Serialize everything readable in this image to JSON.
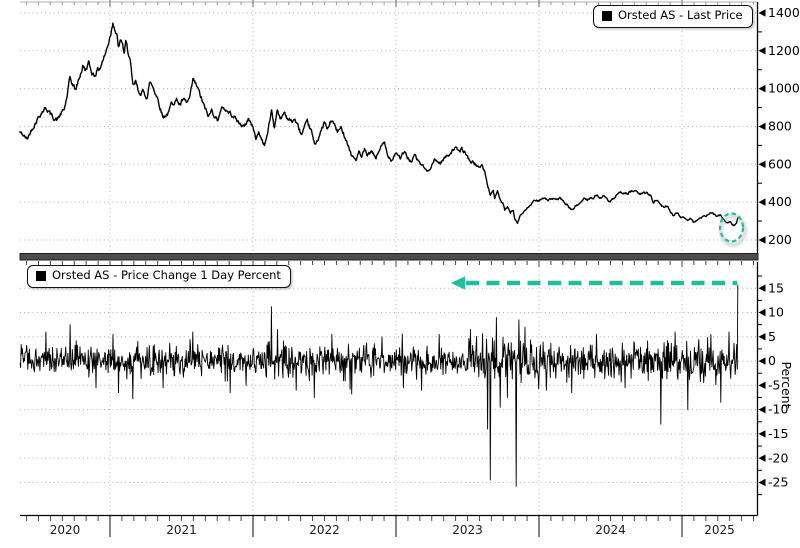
{
  "accent_color": "#1dbf9f",
  "line_color": "#000000",
  "grid_color": "#aeaeae",
  "top_panel": {
    "legend": "Orsted AS - Last Price"
  },
  "bottom_panel": {
    "legend": "Orsted AS - Price Change 1 Day Percent",
    "ylabel": "Percent"
  },
  "x_axis": {
    "year_labels": [
      "2020",
      "2021",
      "2022",
      "2023",
      "2024",
      "2025"
    ]
  },
  "chart_data": [
    {
      "type": "line",
      "title": "Orsted AS - Last Price",
      "ylabel": "",
      "yticks": [
        200,
        400,
        600,
        800,
        1000,
        1200,
        1400
      ],
      "ylim": [
        131,
        1458
      ],
      "xlim": [
        2020.37,
        2025.52
      ],
      "legend_position": "top-right",
      "grid": "dotted",
      "annotation": "dashed teal ellipse circling the final data points near price 290",
      "points": [
        [
          2020.37,
          770
        ],
        [
          2020.4,
          748
        ],
        [
          2020.42,
          733
        ],
        [
          2020.45,
          780
        ],
        [
          2020.47,
          807
        ],
        [
          2020.5,
          850
        ],
        [
          2020.52,
          872
        ],
        [
          2020.55,
          900
        ],
        [
          2020.57,
          880
        ],
        [
          2020.59,
          860
        ],
        [
          2020.61,
          842
        ],
        [
          2020.63,
          835
        ],
        [
          2020.66,
          870
        ],
        [
          2020.68,
          890
        ],
        [
          2020.7,
          960
        ],
        [
          2020.72,
          1056
        ],
        [
          2020.74,
          1020
        ],
        [
          2020.76,
          993
        ],
        [
          2020.79,
          1070
        ],
        [
          2020.81,
          1115
        ],
        [
          2020.83,
          1100
        ],
        [
          2020.85,
          1136
        ],
        [
          2020.87,
          1090
        ],
        [
          2020.89,
          1072
        ],
        [
          2020.91,
          1095
        ],
        [
          2020.93,
          1110
        ],
        [
          2020.95,
          1150
        ],
        [
          2020.97,
          1188
        ],
        [
          2020.99,
          1247
        ],
        [
          2021.01,
          1310
        ],
        [
          2021.02,
          1360
        ],
        [
          2021.04,
          1300
        ],
        [
          2021.05,
          1268
        ],
        [
          2021.06,
          1215
        ],
        [
          2021.08,
          1257
        ],
        [
          2021.1,
          1188
        ],
        [
          2021.11,
          1241
        ],
        [
          2021.13,
          1190
        ],
        [
          2021.14,
          1151
        ],
        [
          2021.16,
          1009
        ],
        [
          2021.18,
          1035
        ],
        [
          2021.2,
          977
        ],
        [
          2021.23,
          982
        ],
        [
          2021.26,
          956
        ],
        [
          2021.28,
          1035
        ],
        [
          2021.3,
          1009
        ],
        [
          2021.33,
          956
        ],
        [
          2021.35,
          903
        ],
        [
          2021.37,
          850
        ],
        [
          2021.41,
          871
        ],
        [
          2021.43,
          924
        ],
        [
          2021.47,
          940
        ],
        [
          2021.49,
          913
        ],
        [
          2021.51,
          940
        ],
        [
          2021.54,
          924
        ],
        [
          2021.56,
          956
        ],
        [
          2021.58,
          1046
        ],
        [
          2021.61,
          1009
        ],
        [
          2021.63,
          966
        ],
        [
          2021.66,
          903
        ],
        [
          2021.69,
          850
        ],
        [
          2021.71,
          887
        ],
        [
          2021.73,
          860
        ],
        [
          2021.75,
          834
        ],
        [
          2021.77,
          871
        ],
        [
          2021.79,
          903
        ],
        [
          2021.82,
          880
        ],
        [
          2021.86,
          860
        ],
        [
          2021.9,
          820
        ],
        [
          2021.94,
          797
        ],
        [
          2021.97,
          845
        ],
        [
          2022.0,
          792
        ],
        [
          2022.02,
          739
        ],
        [
          2022.04,
          766
        ],
        [
          2022.08,
          702
        ],
        [
          2022.1,
          755
        ],
        [
          2022.13,
          887
        ],
        [
          2022.15,
          792
        ],
        [
          2022.17,
          898
        ],
        [
          2022.19,
          834
        ],
        [
          2022.22,
          877
        ],
        [
          2022.24,
          845
        ],
        [
          2022.27,
          824
        ],
        [
          2022.29,
          840
        ],
        [
          2022.31,
          808
        ],
        [
          2022.34,
          755
        ],
        [
          2022.36,
          792
        ],
        [
          2022.38,
          824
        ],
        [
          2022.41,
          771
        ],
        [
          2022.43,
          702
        ],
        [
          2022.45,
          729
        ],
        [
          2022.48,
          780
        ],
        [
          2022.5,
          824
        ],
        [
          2022.52,
          782
        ],
        [
          2022.55,
          834
        ],
        [
          2022.57,
          808
        ],
        [
          2022.59,
          771
        ],
        [
          2022.62,
          792
        ],
        [
          2022.66,
          713
        ],
        [
          2022.69,
          645
        ],
        [
          2022.72,
          623
        ],
        [
          2022.74,
          665
        ],
        [
          2022.76,
          634
        ],
        [
          2022.78,
          676
        ],
        [
          2022.8,
          649
        ],
        [
          2022.83,
          665
        ],
        [
          2022.86,
          634
        ],
        [
          2022.89,
          687
        ],
        [
          2022.92,
          713
        ],
        [
          2022.94,
          649
        ],
        [
          2022.97,
          623
        ],
        [
          2023.0,
          665
        ],
        [
          2023.03,
          634
        ],
        [
          2023.06,
          665
        ],
        [
          2023.08,
          634
        ],
        [
          2023.11,
          613
        ],
        [
          2023.13,
          649
        ],
        [
          2023.15,
          623
        ],
        [
          2023.18,
          597
        ],
        [
          2023.22,
          560
        ],
        [
          2023.25,
          597
        ],
        [
          2023.27,
          623
        ],
        [
          2023.31,
          607
        ],
        [
          2023.34,
          634
        ],
        [
          2023.38,
          660
        ],
        [
          2023.41,
          687
        ],
        [
          2023.44,
          668
        ],
        [
          2023.46,
          680
        ],
        [
          2023.48,
          665
        ],
        [
          2023.5,
          640
        ],
        [
          2023.52,
          615
        ],
        [
          2023.55,
          607
        ],
        [
          2023.57,
          581
        ],
        [
          2023.6,
          597
        ],
        [
          2023.62,
          560
        ],
        [
          2023.64,
          491
        ],
        [
          2023.66,
          438
        ],
        [
          2023.68,
          464
        ],
        [
          2023.69,
          422
        ],
        [
          2023.71,
          454
        ],
        [
          2023.73,
          411
        ],
        [
          2023.75,
          385
        ],
        [
          2023.76,
          358
        ],
        [
          2023.78,
          374
        ],
        [
          2023.8,
          343
        ],
        [
          2023.82,
          358
        ],
        [
          2023.83,
          316
        ],
        [
          2023.85,
          292
        ],
        [
          2023.87,
          332
        ],
        [
          2023.89,
          343
        ],
        [
          2023.92,
          369
        ],
        [
          2023.94,
          385
        ],
        [
          2023.96,
          401
        ],
        [
          2024.0,
          411
        ],
        [
          2024.02,
          422
        ],
        [
          2024.06,
          411
        ],
        [
          2024.09,
          417
        ],
        [
          2024.13,
          411
        ],
        [
          2024.15,
          422
        ],
        [
          2024.18,
          395
        ],
        [
          2024.21,
          374
        ],
        [
          2024.23,
          358
        ],
        [
          2024.25,
          374
        ],
        [
          2024.28,
          390
        ],
        [
          2024.3,
          406
        ],
        [
          2024.32,
          422
        ],
        [
          2024.34,
          411
        ],
        [
          2024.36,
          427
        ],
        [
          2024.38,
          417
        ],
        [
          2024.4,
          438
        ],
        [
          2024.43,
          422
        ],
        [
          2024.45,
          432
        ],
        [
          2024.47,
          417
        ],
        [
          2024.5,
          401
        ],
        [
          2024.52,
          417
        ],
        [
          2024.54,
          432
        ],
        [
          2024.57,
          448
        ],
        [
          2024.62,
          448
        ],
        [
          2024.66,
          460
        ],
        [
          2024.71,
          443
        ],
        [
          2024.75,
          450
        ],
        [
          2024.78,
          438
        ],
        [
          2024.8,
          401
        ],
        [
          2024.83,
          411
        ],
        [
          2024.85,
          385
        ],
        [
          2024.87,
          374
        ],
        [
          2024.9,
          380
        ],
        [
          2024.92,
          348
        ],
        [
          2024.94,
          332
        ],
        [
          2024.97,
          343
        ],
        [
          2024.99,
          316
        ],
        [
          2025.01,
          322
        ],
        [
          2025.04,
          306
        ],
        [
          2025.06,
          316
        ],
        [
          2025.08,
          295
        ],
        [
          2025.11,
          306
        ],
        [
          2025.13,
          316
        ],
        [
          2025.15,
          322
        ],
        [
          2025.18,
          332
        ],
        [
          2025.2,
          343
        ],
        [
          2025.22,
          337
        ],
        [
          2025.25,
          327
        ],
        [
          2025.27,
          332
        ],
        [
          2025.29,
          306
        ],
        [
          2025.32,
          290
        ],
        [
          2025.34,
          295
        ],
        [
          2025.36,
          279
        ],
        [
          2025.38,
          290
        ],
        [
          2025.39,
          316
        ]
      ]
    },
    {
      "type": "line",
      "title": "Orsted AS - Price Change 1 Day Percent",
      "ylabel": "Percent",
      "yticks": [
        15,
        10,
        5,
        0,
        -5,
        -10,
        -15,
        -20,
        -25
      ],
      "ylim": [
        -31.7,
        20.4
      ],
      "xlim": [
        2020.37,
        2025.52
      ],
      "legend_position": "top-left",
      "grid": "dotted",
      "series_description": "daily one-day percent change oscillating around 0, mostly within +/-4",
      "volatility": [
        [
          2020.37,
          2021.0,
          1.55
        ],
        [
          2021.0,
          2022.0,
          1.65
        ],
        [
          2022.0,
          2022.8,
          1.85
        ],
        [
          2022.8,
          2023.5,
          1.65
        ],
        [
          2023.5,
          2024.1,
          2.4
        ],
        [
          2024.1,
          2024.75,
          1.8
        ],
        [
          2024.75,
          2025.4,
          2.1
        ]
      ],
      "spikes": [
        [
          2020.55,
          6
        ],
        [
          2020.72,
          7.5
        ],
        [
          2020.9,
          -5.5
        ],
        [
          2021.02,
          5.5
        ],
        [
          2021.06,
          -6.5
        ],
        [
          2021.16,
          -7.8
        ],
        [
          2021.37,
          -5.5
        ],
        [
          2021.58,
          6
        ],
        [
          2021.84,
          -6.5
        ],
        [
          2021.95,
          -5
        ],
        [
          2022.13,
          11.2
        ],
        [
          2022.17,
          6.5
        ],
        [
          2022.3,
          -6
        ],
        [
          2022.43,
          -7.5
        ],
        [
          2022.55,
          5.5
        ],
        [
          2022.69,
          -6.8
        ],
        [
          2022.9,
          5
        ],
        [
          2023.05,
          -5.5
        ],
        [
          2023.18,
          -6
        ],
        [
          2023.3,
          5.5
        ],
        [
          2023.52,
          6.5
        ],
        [
          2023.64,
          -14
        ],
        [
          2023.66,
          -24.5
        ],
        [
          2023.7,
          9
        ],
        [
          2023.73,
          -9.5
        ],
        [
          2023.78,
          -7.5
        ],
        [
          2023.84,
          -25.8
        ],
        [
          2023.86,
          8.5
        ],
        [
          2023.9,
          7
        ],
        [
          2024.05,
          -6
        ],
        [
          2024.23,
          -6.5
        ],
        [
          2024.4,
          5.5
        ],
        [
          2024.6,
          -5.5
        ],
        [
          2024.85,
          -13
        ],
        [
          2024.95,
          6
        ],
        [
          2025.04,
          -10
        ],
        [
          2025.2,
          5.5
        ],
        [
          2025.27,
          -8.5
        ],
        [
          2025.33,
          6
        ],
        [
          2025.39,
          15.7
        ]
      ],
      "annotation": "thick dashed teal arrow at +16 pointing left toward the final +15.7% spike"
    }
  ]
}
